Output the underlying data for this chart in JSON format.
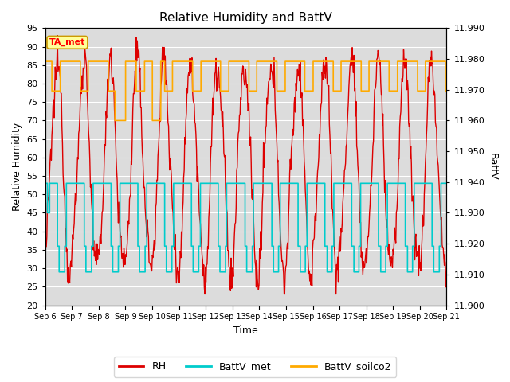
{
  "title": "Relative Humidity and BattV",
  "xlabel": "Time",
  "ylabel_left": "Relative Humidity",
  "ylabel_right": "BattV",
  "annotation_text": "TA_met",
  "annotation_bg": "#ffff99",
  "annotation_border": "#cc9900",
  "plot_bg": "#dcdcdc",
  "fig_bg": "#ffffff",
  "xlim": [
    0,
    15
  ],
  "ylim_left": [
    20,
    95
  ],
  "ylim_right": [
    11.9,
    11.99
  ],
  "left_ticks": [
    20,
    25,
    30,
    35,
    40,
    45,
    50,
    55,
    60,
    65,
    70,
    75,
    80,
    85,
    90,
    95
  ],
  "right_ticks": [
    11.9,
    11.91,
    11.92,
    11.93,
    11.94,
    11.95,
    11.96,
    11.97,
    11.98,
    11.99
  ],
  "xtick_labels": [
    "Sep 6",
    "Sep 7",
    "Sep 8",
    "Sep 9",
    "Sep 10",
    "Sep 11",
    "Sep 12",
    "Sep 13",
    "Sep 14",
    "Sep 15",
    "Sep 16",
    "Sep 17",
    "Sep 18",
    "Sep 19",
    "Sep 20",
    "Sep 21"
  ],
  "rh_color": "#dd0000",
  "battv_met_color": "#00cccc",
  "battv_soilco2_color": "#ffaa00",
  "legend_rh": "RH",
  "legend_battv_met": "BattV_met",
  "legend_battv_soilco2": "BattV_soilco2",
  "rh_linewidth": 1.0,
  "battv_linewidth": 1.2,
  "title_fontsize": 11,
  "label_fontsize": 9,
  "tick_fontsize": 8,
  "legend_fontsize": 9
}
